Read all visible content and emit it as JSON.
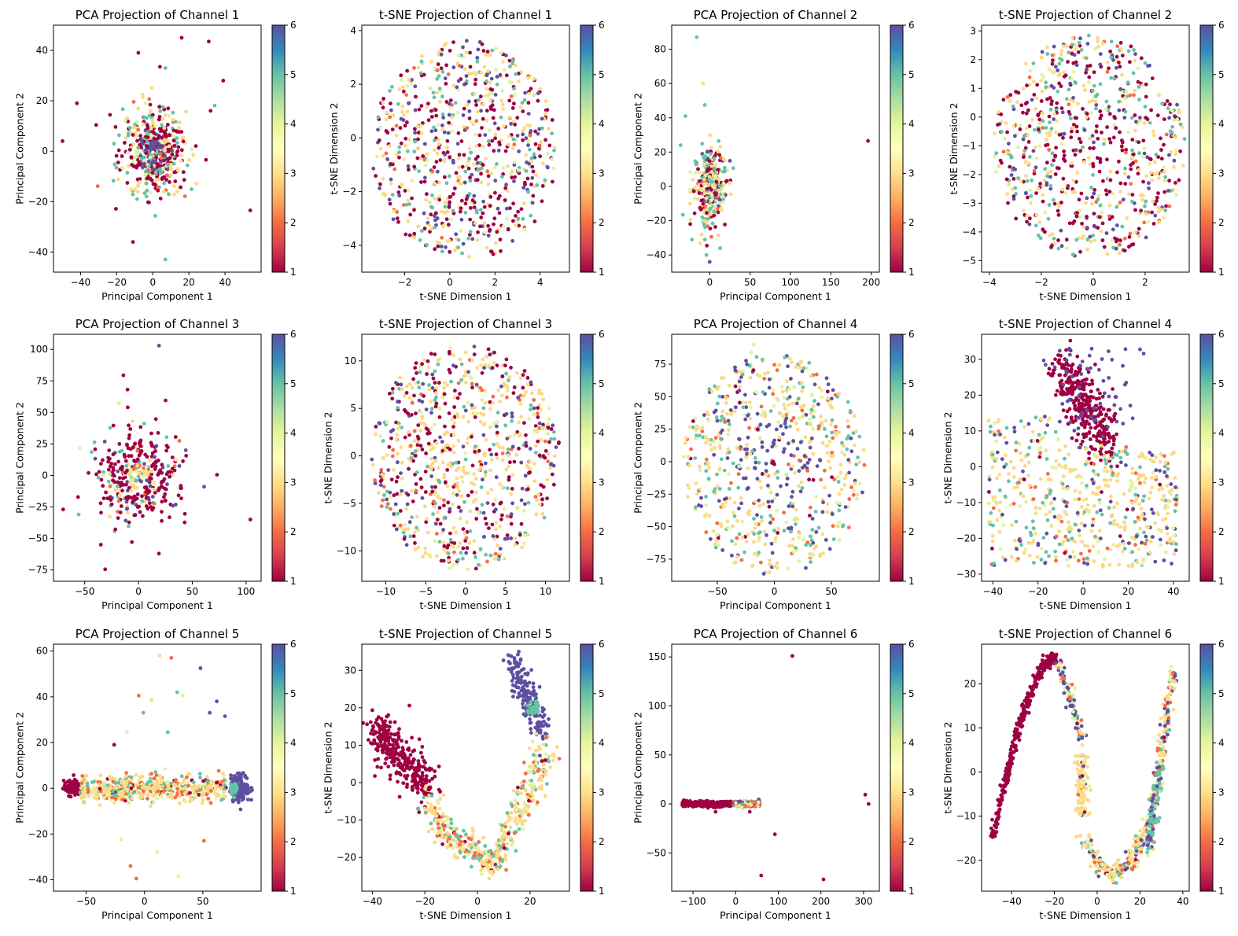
{
  "figure": {
    "colormap": "Spectral",
    "colormap_stops": [
      "#9e0142",
      "#d53e4f",
      "#f46d43",
      "#fdae61",
      "#fee08b",
      "#ffffbf",
      "#e6f598",
      "#abdda4",
      "#66c2a5",
      "#3288bd",
      "#5e4fa2"
    ],
    "colorbar_range": [
      1,
      6
    ],
    "colorbar_ticks": [
      "1",
      "2",
      "3",
      "4",
      "5",
      "6"
    ]
  },
  "chart_data": [
    {
      "type": "scatter",
      "title": "PCA Projection of Channel 1",
      "xlabel": "Principal Component 1",
      "ylabel": "Principal Component 2",
      "xlim": [
        -55,
        60
      ],
      "ylim": [
        -48,
        50
      ],
      "xticks": [
        -40,
        -20,
        0,
        20,
        40
      ],
      "yticks": [
        -40,
        -20,
        0,
        20,
        40
      ],
      "tick_labels_x": [
        "−40",
        "−20",
        "0",
        "20",
        "40"
      ],
      "tick_labels_y": [
        "−40",
        "−20",
        "0",
        "20",
        "40"
      ],
      "colorbar_ticks": [
        "1",
        "2",
        "3",
        "4",
        "5",
        "6"
      ],
      "pattern": "blob",
      "center": [
        0,
        0
      ],
      "spread": [
        9,
        9
      ],
      "n": 520,
      "mix": [
        0.38,
        0.03,
        0.2,
        0.07,
        0.2,
        0.12
      ],
      "outliers": [
        [
          -50,
          4,
          1
        ],
        [
          -42,
          19,
          1
        ],
        [
          16,
          45,
          1
        ],
        [
          31,
          43.5,
          1
        ],
        [
          -8,
          39,
          1
        ],
        [
          39,
          28,
          1
        ],
        [
          54,
          -23.5,
          1
        ],
        [
          -11,
          -36,
          1
        ],
        [
          7,
          -43,
          5
        ],
        [
          32,
          16,
          1
        ],
        [
          4,
          33.5,
          1
        ],
        [
          7,
          33,
          5
        ]
      ]
    },
    {
      "type": "scatter",
      "title": "t-SNE Projection of Channel 1",
      "xlabel": "t-SNE Dimension 1",
      "ylabel": "t-SNE Dimension 2",
      "xlim": [
        -3.9,
        5.3
      ],
      "ylim": [
        -5.0,
        4.2
      ],
      "xticks": [
        -2,
        0,
        2,
        4
      ],
      "yticks": [
        -4,
        -2,
        0,
        2,
        4
      ],
      "tick_labels_x": [
        "−2",
        "0",
        "2",
        "4"
      ],
      "tick_labels_y": [
        "−4",
        "−2",
        "0",
        "2",
        "4"
      ],
      "colorbar_ticks": [
        "1",
        "2",
        "3",
        "4",
        "5",
        "6"
      ],
      "pattern": "disc",
      "center": [
        0.65,
        -0.45
      ],
      "radius": [
        4.1,
        4.1
      ],
      "n": 760,
      "mix": [
        0.33,
        0.05,
        0.25,
        0.1,
        0.13,
        0.14
      ],
      "outliers": []
    },
    {
      "type": "scatter",
      "title": "PCA Projection of Channel 2",
      "xlabel": "Principal Component 1",
      "ylabel": "Principal Component 2",
      "xlim": [
        -47,
        210
      ],
      "ylim": [
        -50,
        94
      ],
      "xticks": [
        0,
        50,
        100,
        150,
        200
      ],
      "yticks": [
        -40,
        -20,
        0,
        20,
        40,
        60,
        80
      ],
      "tick_labels_x": [
        "0",
        "50",
        "100",
        "150",
        "200"
      ],
      "tick_labels_y": [
        "−40",
        "−20",
        "0",
        "20",
        "40",
        "60",
        "80"
      ],
      "colorbar_ticks": [
        "1",
        "2",
        "3",
        "4",
        "5",
        "6"
      ],
      "pattern": "blob",
      "center": [
        0,
        0
      ],
      "spread": [
        10,
        11
      ],
      "n": 330,
      "mix": [
        0.2,
        0.05,
        0.3,
        0.12,
        0.25,
        0.08
      ],
      "outliers": [
        [
          -16,
          87,
          5
        ],
        [
          -8,
          60,
          3
        ],
        [
          -6,
          47.5,
          5
        ],
        [
          -30,
          41,
          5
        ],
        [
          196,
          26.5,
          1
        ],
        [
          -36,
          24,
          5
        ],
        [
          0,
          -44,
          6
        ],
        [
          -4,
          -40,
          5
        ],
        [
          13,
          -36,
          5
        ],
        [
          -6,
          -31,
          5
        ],
        [
          -22,
          -31,
          5
        ],
        [
          -24,
          -22,
          1
        ]
      ]
    },
    {
      "type": "scatter",
      "title": "t-SNE Projection of Channel 2",
      "xlabel": "t-SNE Dimension 1",
      "ylabel": "t-SNE Dimension 2",
      "xlim": [
        -4.3,
        3.7
      ],
      "ylim": [
        -5.4,
        3.2
      ],
      "xticks": [
        -4,
        -2,
        0,
        2
      ],
      "yticks": [
        -5,
        -4,
        -3,
        -2,
        -1,
        0,
        1,
        2,
        3
      ],
      "tick_labels_x": [
        "−4",
        "−2",
        "0",
        "2"
      ],
      "tick_labels_y": [
        "−5",
        "−4",
        "−3",
        "−2",
        "−1",
        "0",
        "1",
        "2",
        "3"
      ],
      "colorbar_ticks": [
        "1",
        "2",
        "3",
        "4",
        "5",
        "6"
      ],
      "pattern": "disc",
      "center": [
        -0.15,
        -1.05
      ],
      "radius": [
        3.7,
        3.9
      ],
      "n": 760,
      "mix": [
        0.3,
        0.05,
        0.25,
        0.1,
        0.17,
        0.13
      ],
      "core_class": 1,
      "outliers": []
    },
    {
      "type": "scatter",
      "title": "PCA Projection of Channel 3",
      "xlabel": "Principal Component 1",
      "ylabel": "Principal Component 2",
      "xlim": [
        -79,
        114
      ],
      "ylim": [
        -84,
        112
      ],
      "xticks": [
        -50,
        0,
        50,
        100
      ],
      "yticks": [
        -75,
        -50,
        -25,
        0,
        25,
        50,
        75,
        100
      ],
      "tick_labels_x": [
        "−50",
        "0",
        "50",
        "100"
      ],
      "tick_labels_y": [
        "−75",
        "−50",
        "−25",
        "0",
        "25",
        "50",
        "75",
        "100"
      ],
      "colorbar_ticks": [
        "1",
        "2",
        "3",
        "4",
        "5",
        "6"
      ],
      "pattern": "blob",
      "center": [
        0,
        0
      ],
      "spread": [
        18,
        18
      ],
      "n": 360,
      "mix": [
        0.66,
        0.05,
        0.1,
        0.04,
        0.05,
        0.1
      ],
      "core_light": true,
      "outliers": [
        [
          19,
          103,
          6
        ],
        [
          -14,
          79.5,
          1
        ],
        [
          -10,
          54,
          1
        ],
        [
          -70,
          -27,
          1
        ],
        [
          104,
          -35,
          1
        ],
        [
          73,
          0.5,
          1
        ],
        [
          -31,
          -74.5,
          1
        ],
        [
          19,
          -62,
          1
        ],
        [
          -35,
          -55,
          1
        ],
        [
          61,
          -9,
          6
        ],
        [
          44,
          20,
          6
        ],
        [
          38,
          27.5,
          2
        ]
      ]
    },
    {
      "type": "scatter",
      "title": "t-SNE Projection of Channel 3",
      "xlabel": "t-SNE Dimension 1",
      "ylabel": "t-SNE Dimension 2",
      "xlim": [
        -13,
        13
      ],
      "ylim": [
        -13.2,
        12.8
      ],
      "xticks": [
        -10,
        -5,
        0,
        5,
        10
      ],
      "yticks": [
        -10,
        -5,
        0,
        5,
        10
      ],
      "tick_labels_x": [
        "−10",
        "−5",
        "0",
        "5",
        "10"
      ],
      "tick_labels_y": [
        "−10",
        "−5",
        "0",
        "5",
        "10"
      ],
      "colorbar_ticks": [
        "1",
        "2",
        "3",
        "4",
        "5",
        "6"
      ],
      "pattern": "disc",
      "center": [
        0,
        -0.2
      ],
      "radius": [
        11.8,
        11.8
      ],
      "n": 800,
      "mix": [
        0.34,
        0.06,
        0.28,
        0.08,
        0.12,
        0.12
      ],
      "core_class": 3,
      "outliers": []
    },
    {
      "type": "scatter",
      "title": "PCA Projection of Channel 4",
      "xlabel": "Principal Component 1",
      "ylabel": "Principal Component 2",
      "xlim": [
        -90,
        92
      ],
      "ylim": [
        -92,
        98
      ],
      "xticks": [
        -50,
        0,
        50
      ],
      "yticks": [
        -75,
        -50,
        -25,
        0,
        25,
        50,
        75
      ],
      "tick_labels_x": [
        "−50",
        "0",
        "50"
      ],
      "tick_labels_y": [
        "−75",
        "−50",
        "−25",
        "0",
        "25",
        "50",
        "75"
      ],
      "colorbar_ticks": [
        "1",
        "2",
        "3",
        "4",
        "5",
        "6"
      ],
      "pattern": "disc",
      "center": [
        0,
        -2
      ],
      "radius": [
        80,
        85
      ],
      "n": 680,
      "mix": [
        0.03,
        0.1,
        0.38,
        0.14,
        0.2,
        0.15
      ],
      "core_class": 6,
      "outliers": [
        [
          -1,
          0,
          1
        ],
        [
          0,
          -2,
          1
        ],
        [
          -2,
          -1,
          1
        ],
        [
          -18,
          90,
          4
        ],
        [
          -20,
          84,
          4
        ]
      ]
    },
    {
      "type": "scatter",
      "title": "t-SNE Projection of Channel 4",
      "xlabel": "t-SNE Dimension 1",
      "ylabel": "t-SNE Dimension 2",
      "xlim": [
        -45,
        47
      ],
      "ylim": [
        -32,
        37
      ],
      "xticks": [
        -40,
        -20,
        0,
        20,
        40
      ],
      "yticks": [
        -30,
        -20,
        -10,
        0,
        10,
        20,
        30
      ],
      "tick_labels_x": [
        "−40",
        "−20",
        "0",
        "20",
        "40"
      ],
      "tick_labels_y": [
        "−30",
        "−20",
        "−10",
        "0",
        "10",
        "20",
        "30"
      ],
      "colorbar_ticks": [
        "1",
        "2",
        "3",
        "4",
        "5",
        "6"
      ],
      "pattern": "tsne4",
      "n": 900,
      "outliers": []
    },
    {
      "type": "scatter",
      "title": "PCA Projection of Channel 5",
      "xlabel": "Principal Component 1",
      "ylabel": "Principal Component 2",
      "xlim": [
        -78,
        100
      ],
      "ylim": [
        -45,
        63
      ],
      "xticks": [
        -50,
        0,
        50
      ],
      "yticks": [
        -40,
        -20,
        0,
        20,
        40,
        60
      ],
      "tick_labels_x": [
        "−50",
        "0",
        "50"
      ],
      "tick_labels_y": [
        "−40",
        "−20",
        "0",
        "20",
        "40",
        "60"
      ],
      "colorbar_ticks": [
        "1",
        "2",
        "3",
        "4",
        "5",
        "6"
      ],
      "pattern": "pca5",
      "n": 900,
      "outliers": [
        [
          13,
          58,
          3
        ],
        [
          23,
          57,
          2
        ],
        [
          48,
          52.5,
          6
        ],
        [
          -5,
          40.5,
          2
        ],
        [
          6,
          38.5,
          3
        ],
        [
          28,
          42,
          5
        ],
        [
          33,
          40.5,
          4
        ],
        [
          62,
          38,
          6
        ],
        [
          -1,
          33,
          5
        ],
        [
          56,
          33,
          6
        ],
        [
          69,
          31.5,
          6
        ],
        [
          20,
          24.5,
          5
        ],
        [
          -15,
          24.5,
          4
        ],
        [
          -26,
          19,
          1
        ],
        [
          -12,
          -34,
          2
        ],
        [
          -7,
          -39.5,
          2
        ],
        [
          29,
          -38.5,
          4
        ],
        [
          11,
          -28,
          4
        ],
        [
          -20,
          -22.5,
          4
        ],
        [
          51,
          -23,
          2
        ]
      ]
    },
    {
      "type": "scatter",
      "title": "t-SNE Projection of Channel 5",
      "xlabel": "t-SNE Dimension 1",
      "ylabel": "t-SNE Dimension 2",
      "xlim": [
        -44,
        35
      ],
      "ylim": [
        -29,
        37
      ],
      "xticks": [
        -40,
        -20,
        0,
        20
      ],
      "yticks": [
        -20,
        -10,
        0,
        10,
        20,
        30
      ],
      "tick_labels_x": [
        "−40",
        "−20",
        "0",
        "20"
      ],
      "tick_labels_y": [
        "−20",
        "−10",
        "0",
        "10",
        "20",
        "30"
      ],
      "colorbar_ticks": [
        "1",
        "2",
        "3",
        "4",
        "5",
        "6"
      ],
      "pattern": "tsne5",
      "n": 1000,
      "outliers": []
    },
    {
      "type": "scatter",
      "title": "PCA Projection of Channel 6",
      "xlabel": "Principal Component 1",
      "ylabel": "Principal Component 2",
      "xlim": [
        -150,
        337
      ],
      "ylim": [
        -89,
        163
      ],
      "xticks": [
        -100,
        0,
        100,
        200,
        300
      ],
      "yticks": [
        -50,
        0,
        50,
        100,
        150
      ],
      "tick_labels_x": [
        "−100",
        "0",
        "100",
        "200",
        "300"
      ],
      "tick_labels_y": [
        "−50",
        "0",
        "50",
        "100",
        "150"
      ],
      "colorbar_ticks": [
        "1",
        "2",
        "3",
        "4",
        "5",
        "6"
      ],
      "pattern": "pca6",
      "n": 900,
      "outliers": [
        [
          133,
          151,
          1
        ],
        [
          304,
          9.5,
          1
        ],
        [
          312,
          0,
          1
        ],
        [
          92,
          -31,
          1
        ],
        [
          60,
          -73,
          1
        ],
        [
          206,
          -77,
          1
        ],
        [
          33,
          -8,
          1
        ],
        [
          -47,
          -8,
          1
        ],
        [
          -65,
          -4,
          1
        ]
      ]
    },
    {
      "type": "scatter",
      "title": "t-SNE Projection of Channel 6",
      "xlabel": "t-SNE Dimension 1",
      "ylabel": "t-SNE Dimension 2",
      "xlim": [
        -54,
        43
      ],
      "ylim": [
        -27,
        29
      ],
      "xticks": [
        -40,
        -20,
        0,
        20,
        40
      ],
      "yticks": [
        -20,
        -10,
        0,
        10,
        20
      ],
      "tick_labels_x": [
        "−40",
        "−20",
        "0",
        "20",
        "40"
      ],
      "tick_labels_y": [
        "−20",
        "−10",
        "0",
        "10",
        "20"
      ],
      "colorbar_ticks": [
        "1",
        "2",
        "3",
        "4",
        "5",
        "6"
      ],
      "pattern": "tsne6",
      "n": 1000,
      "outliers": []
    }
  ]
}
